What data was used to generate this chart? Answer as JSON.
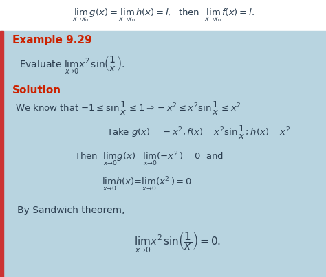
{
  "bg_color_white": "#ffffff",
  "bg_color_main": "#b8d4e0",
  "left_bar_color": "#cc3333",
  "example_color": "#cc2200",
  "solution_color": "#cc2200",
  "text_color": "#2c3e50",
  "figsize": [
    4.74,
    4.03
  ],
  "dpi": 100,
  "example_label": "Example 9.29",
  "solution_label": "Solution",
  "bysandwich_text": "By Sandwich theorem,"
}
